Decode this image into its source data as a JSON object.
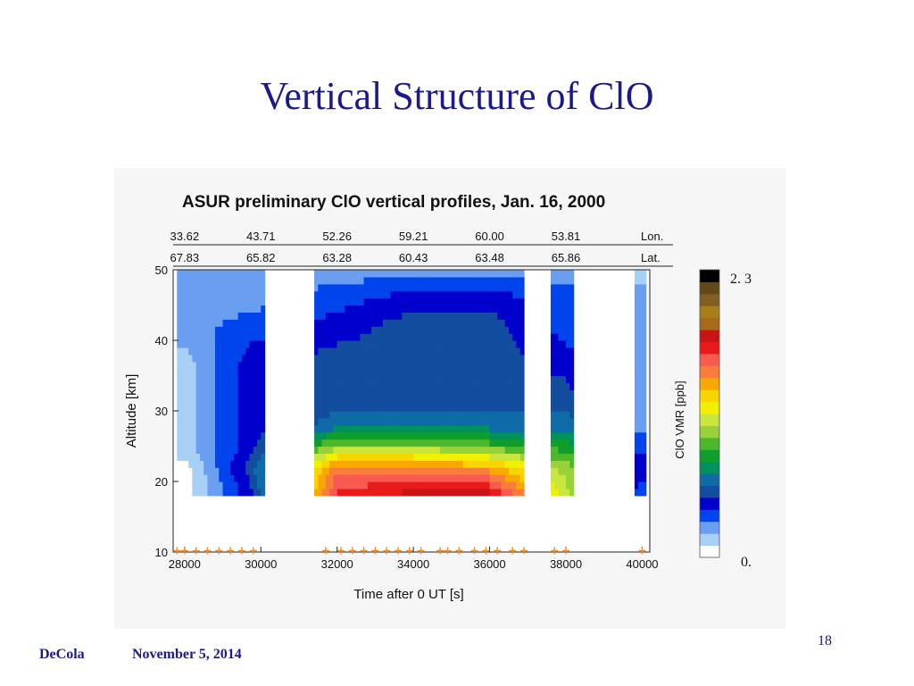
{
  "slide": {
    "title": "Vertical Structure of ClO",
    "footer_author": "DeCola",
    "footer_date": "November 5, 2014",
    "page_number": "18"
  },
  "chart_data": {
    "type": "heatmap",
    "title": "ASUR preliminary ClO vertical profiles, Jan. 16, 2000",
    "xlabel": "Time after 0 UT [s]",
    "ylabel": "Altitude [km]",
    "xlim": [
      27700,
      40200
    ],
    "ylim": [
      10,
      50
    ],
    "x_ticks": [
      "28000",
      "30000",
      "32000",
      "34000",
      "36000",
      "38000",
      "40000"
    ],
    "y_ticks": [
      "10",
      "20",
      "30",
      "40",
      "50"
    ],
    "top_axes": [
      {
        "label": "Lon.",
        "ticks": [
          {
            "x": 28000,
            "label": "33.62"
          },
          {
            "x": 30000,
            "label": "43.71"
          },
          {
            "x": 32000,
            "label": "52.26"
          },
          {
            "x": 34000,
            "label": "59.21"
          },
          {
            "x": 36000,
            "label": "60.00"
          },
          {
            "x": 38000,
            "label": "53.81"
          }
        ]
      },
      {
        "label": "Lat.",
        "ticks": [
          {
            "x": 28000,
            "label": "67.83"
          },
          {
            "x": 30000,
            "label": "65.82"
          },
          {
            "x": 32000,
            "label": "63.28"
          },
          {
            "x": 34000,
            "label": "60.43"
          },
          {
            "x": 36000,
            "label": "63.48"
          },
          {
            "x": 38000,
            "label": "65.86"
          }
        ]
      }
    ],
    "colorbar": {
      "label": "ClO VMR [ppb]",
      "max_label": "2. 3",
      "min_label": "0.",
      "range": [
        0,
        2.3
      ],
      "colors": [
        "#ffffff",
        "#a8cff5",
        "#6a9ef0",
        "#0044ee",
        "#0000cc",
        "#124d9f",
        "#0f6aa8",
        "#00915c",
        "#0f9d2b",
        "#4cb82c",
        "#98d23a",
        "#c8e63c",
        "#f0f000",
        "#f8d400",
        "#f8a800",
        "#f87c3c",
        "#f85a50",
        "#e81a1a",
        "#c81414",
        "#a86a18",
        "#a87e18",
        "#806020",
        "#604818",
        "#000000"
      ]
    },
    "data_gaps_s": [
      [
        30100,
        31400
      ],
      [
        36900,
        37600
      ],
      [
        38200,
        39800
      ]
    ],
    "measurement_times_s": [
      27800,
      28000,
      28300,
      28600,
      28900,
      29200,
      29500,
      29800,
      31700,
      32100,
      32400,
      32700,
      33000,
      33300,
      33600,
      33900,
      34200,
      34700,
      34900,
      35200,
      35600,
      35900,
      36200,
      36600,
      36900,
      37700,
      38000,
      40000
    ],
    "profiles": [
      {
        "time": 28000,
        "vmr": [
          0,
          0,
          0.1,
          0.1,
          0.1,
          0.1,
          0.2,
          0.2,
          0.2
        ]
      },
      {
        "time": 29700,
        "vmr": [
          0.4,
          0.5,
          0.4,
          0.4,
          0.4,
          0.4,
          0.3,
          0.2,
          0.2
        ]
      },
      {
        "time": 32000,
        "vmr": [
          1.7,
          1.5,
          1.0,
          0.6,
          0.5,
          0.5,
          0.4,
          0.3,
          0.2
        ]
      },
      {
        "time": 34000,
        "vmr": [
          1.8,
          1.5,
          1.0,
          0.6,
          0.5,
          0.5,
          0.5,
          0.4,
          0.2
        ]
      },
      {
        "time": 36000,
        "vmr": [
          1.8,
          1.4,
          0.9,
          0.6,
          0.5,
          0.5,
          0.5,
          0.4,
          0.2
        ]
      },
      {
        "time": 38000,
        "vmr": [
          1.1,
          1.0,
          0.8,
          0.6,
          0.5,
          0.4,
          0.3,
          0.3,
          0.2
        ]
      },
      {
        "time": 39900,
        "vmr": [
          0.3,
          0.4,
          0.3,
          0.2,
          0.2,
          0.2,
          0.2,
          0.2,
          0.1
        ]
      }
    ],
    "profile_altitudes_km": [
      18,
      22,
      25,
      28,
      32,
      37,
      42,
      46,
      50
    ]
  }
}
